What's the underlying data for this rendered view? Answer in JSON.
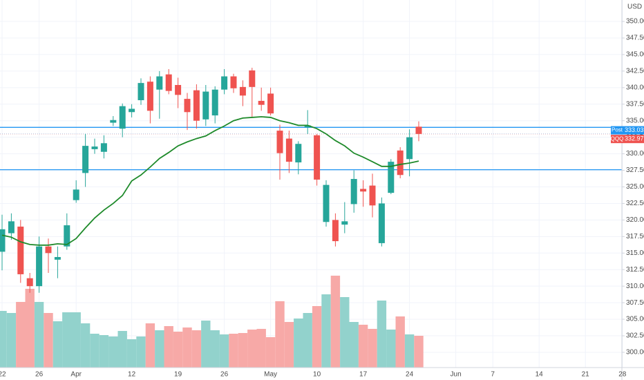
{
  "chart_data": {
    "type": "candlestick",
    "currency": "USD",
    "categories": [
      "22",
      null,
      null,
      null,
      "26",
      null,
      null,
      null,
      "Apr",
      null,
      null,
      null,
      null,
      null,
      "12",
      null,
      null,
      null,
      null,
      "19",
      null,
      null,
      null,
      null,
      "26",
      null,
      null,
      null,
      null,
      "May",
      null,
      null,
      null,
      null,
      "10",
      null,
      null,
      null,
      null,
      "17",
      null,
      null,
      null,
      null,
      "24",
      null,
      null,
      null,
      null,
      "Jun",
      null,
      null,
      null,
      "7",
      null,
      null,
      null,
      null,
      "14",
      null,
      null,
      null,
      null,
      "21",
      null,
      null,
      null,
      "28"
    ],
    "open": [
      315.2,
      318.0,
      319.0,
      311.2,
      310.0,
      316.0,
      314.0,
      316.0,
      323.0,
      327.1,
      330.7,
      330.3,
      334.7,
      333.8,
      336.3,
      338.1,
      340.9,
      339.7,
      342.0,
      340.4,
      338.3,
      339.6,
      335.2,
      335.8,
      339.7,
      341.7,
      340.1,
      342.6,
      338.0,
      339.1,
      333.5,
      332.3,
      328.7,
      334.0,
      332.8,
      319.7,
      320.0,
      319.3,
      322.4,
      324.7,
      325.2,
      316.5,
      324.1,
      330.5,
      329.2,
      334.1,
      null,
      null,
      null,
      null,
      null,
      null,
      null,
      null,
      null,
      null,
      null,
      null,
      null,
      null,
      null,
      null,
      null,
      null,
      null,
      null,
      null,
      null
    ],
    "high": [
      320.8,
      321.0,
      320.0,
      312.0,
      317.5,
      317.2,
      316.0,
      321.0,
      326.0,
      333.0,
      332.3,
      332.8,
      335.7,
      337.6,
      337.5,
      341.4,
      341.7,
      342.5,
      342.8,
      341.5,
      339.2,
      340.5,
      340.4,
      340.2,
      342.8,
      342.1,
      341.1,
      343.0,
      340.0,
      340.0,
      334.4,
      333.5,
      331.9,
      336.6,
      333.0,
      326.0,
      321.0,
      322.7,
      327.5,
      326.0,
      327.0,
      323.4,
      329.2,
      331.0,
      333.7,
      334.9,
      null,
      null,
      null,
      null,
      null,
      null,
      null,
      null,
      null,
      null,
      null,
      null,
      null,
      null,
      null,
      null,
      null,
      null,
      null,
      null,
      null,
      null
    ],
    "low": [
      312.4,
      317.0,
      310.5,
      309.0,
      309.0,
      312.0,
      311.2,
      315.5,
      322.6,
      325.0,
      330.0,
      329.3,
      334.2,
      332.5,
      335.5,
      337.4,
      334.6,
      335.3,
      339.0,
      336.9,
      333.6,
      333.8,
      334.2,
      334.6,
      339.0,
      339.2,
      337.2,
      335.6,
      336.5,
      335.8,
      326.1,
      327.1,
      326.9,
      333.0,
      325.2,
      319.0,
      316.0,
      318.0,
      321.1,
      322.0,
      320.4,
      316.0,
      323.9,
      326.3,
      326.6,
      331.9,
      null,
      null,
      null,
      null,
      null,
      null,
      null,
      null,
      null,
      null,
      null,
      null,
      null,
      null,
      null,
      null,
      null,
      null,
      null,
      null,
      null,
      null
    ],
    "close": [
      318.6,
      319.8,
      311.8,
      310.0,
      316.0,
      315.0,
      314.4,
      319.2,
      324.6,
      331.2,
      331.1,
      331.6,
      335.1,
      337.2,
      336.8,
      340.7,
      336.5,
      341.7,
      339.5,
      338.9,
      336.3,
      335.0,
      339.4,
      339.7,
      341.7,
      339.9,
      338.8,
      340.1,
      337.4,
      336.1,
      330.1,
      328.8,
      331.5,
      334.3,
      326.1,
      325.3,
      316.8,
      319.8,
      326.2,
      324.3,
      322.2,
      322.5,
      328.8,
      326.8,
      332.5,
      333.0,
      null,
      null,
      null,
      null,
      null,
      null,
      null,
      null,
      null,
      null,
      null,
      null,
      null,
      null,
      null,
      null,
      null,
      null,
      null,
      null,
      null,
      null
    ],
    "up_color": "#26a69a",
    "down_color": "#ef5350",
    "ma": {
      "color": "#1e8a2a",
      "values": [
        317.7,
        317.4,
        316.7,
        316.3,
        316.2,
        316.2,
        316.4,
        316.3,
        317.2,
        318.8,
        320.3,
        321.5,
        322.5,
        323.7,
        325.9,
        326.8,
        328.0,
        329.3,
        330.2,
        331.2,
        331.8,
        332.3,
        332.7,
        333.5,
        334.2,
        335.0,
        335.4,
        335.5,
        335.6,
        335.5,
        335.0,
        334.7,
        334.3,
        334.3,
        333.8,
        333.0,
        332.0,
        331.2,
        330.1,
        329.5,
        328.8,
        328.1,
        328.1,
        328.4,
        328.6,
        328.9,
        null,
        null,
        null,
        null,
        null,
        null,
        null,
        null,
        null,
        null,
        null,
        null,
        null,
        null,
        null,
        null,
        null,
        null,
        null,
        null,
        null,
        null
      ]
    },
    "volume": {
      "up_color": "#92d2cc",
      "down_color": "#f7a9a7",
      "lim": [
        0,
        200
      ],
      "values": [
        82,
        79,
        95,
        114,
        95,
        79,
        67,
        80,
        80,
        64,
        49,
        47,
        45,
        53,
        41,
        45,
        64,
        54,
        60,
        52,
        58,
        54,
        68,
        54,
        48,
        49,
        50,
        55,
        56,
        44,
        96,
        66,
        71,
        79,
        89,
        106,
        133,
        102,
        66,
        62,
        56,
        97,
        55,
        74,
        48,
        46,
        null,
        null,
        null,
        null,
        null,
        null,
        null,
        null,
        null,
        null,
        null,
        null,
        null,
        null,
        null,
        null,
        null,
        null,
        null,
        null,
        null,
        null
      ]
    },
    "ylim": [
      297.7,
      353.24
    ],
    "yticks": [
      {
        "value": 300,
        "label": "300.00"
      },
      {
        "value": 302.5,
        "label": "302.50"
      },
      {
        "value": 305,
        "label": "305.00"
      },
      {
        "value": 307.5,
        "label": "307.50"
      },
      {
        "value": 310,
        "label": "310.00"
      },
      {
        "value": 312.5,
        "label": "312.50"
      },
      {
        "value": 315,
        "label": "315.00"
      },
      {
        "value": 317.5,
        "label": "317.50"
      },
      {
        "value": 320,
        "label": "320.00"
      },
      {
        "value": 322.5,
        "label": "322.50"
      },
      {
        "value": 325,
        "label": "325.00"
      },
      {
        "value": 327.5,
        "label": "327.50"
      },
      {
        "value": 330,
        "label": "330.00"
      },
      {
        "value": 332.5,
        "label": "332.50"
      },
      {
        "value": 335,
        "label": "335.00"
      },
      {
        "value": 337.5,
        "label": "337.50"
      },
      {
        "value": 340,
        "label": "340.00"
      },
      {
        "value": 342.5,
        "label": "342.50"
      },
      {
        "value": 345,
        "label": "345.00"
      },
      {
        "value": 347.5,
        "label": "347.50"
      },
      {
        "value": 350,
        "label": "350.00"
      }
    ],
    "grid": true,
    "hlines": [
      {
        "value": 334.0,
        "color": "#2196f3"
      },
      {
        "value": 327.6,
        "color": "#2196f3"
      }
    ],
    "price_labels": [
      {
        "name": "Post",
        "value": 333.03,
        "color": "#2196f3"
      },
      {
        "name": "QQQ",
        "value": 332.97,
        "color": "#ef5350"
      }
    ]
  }
}
